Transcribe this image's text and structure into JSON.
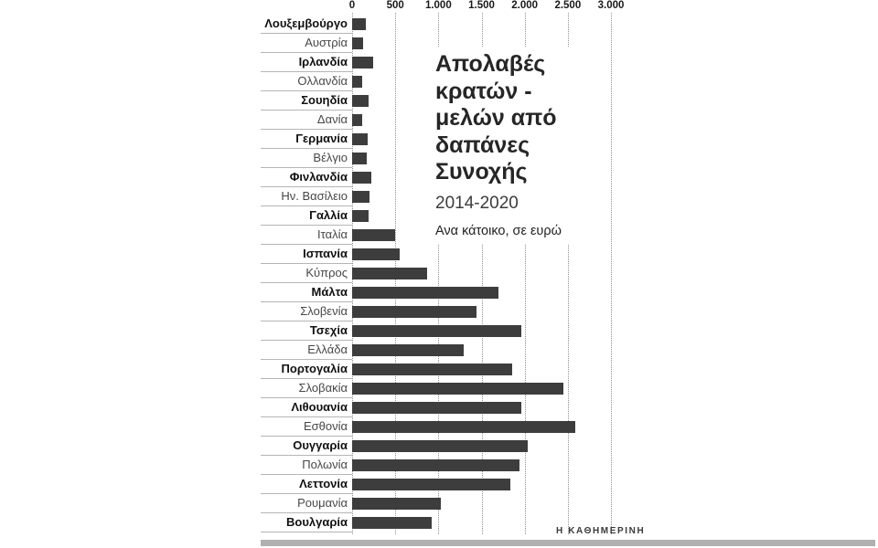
{
  "chart_data": {
    "type": "bar",
    "orientation": "horizontal",
    "title": "Απολαβές κρατών - μελών από δαπάνες Συνοχής",
    "subtitle": "2014-2020",
    "unit_label": "Ανα κάτοικο, σε ευρώ",
    "xlim": [
      0,
      3000
    ],
    "x_ticks": [
      0,
      500,
      1000,
      1500,
      2000,
      2500,
      3000
    ],
    "x_tick_labels": [
      "0",
      "500",
      "1.000",
      "1.500",
      "2.000",
      "2.500",
      "3.000"
    ],
    "grid": "dotted-vertical",
    "legend": "none",
    "label_style_alternating_bold": true,
    "categories": [
      "Λουξεμβούργο",
      "Αυστρία",
      "Ιρλανδία",
      "Ολλανδία",
      "Σουηδία",
      "Δανία",
      "Γερμανία",
      "Βέλγιο",
      "Φινλανδία",
      "Ην. Βασίλειο",
      "Γαλλία",
      "Ιταλία",
      "Ισπανία",
      "Κύπρος",
      "Μάλτα",
      "Σλοβενία",
      "Τσεχία",
      "Ελλάδα",
      "Πορτογαλία",
      "Σλοβακία",
      "Λιθουανία",
      "Εσθονία",
      "Ουγγαρία",
      "Πολωνία",
      "Λεττονία",
      "Ρουμανία",
      "Βουλγαρία"
    ],
    "values": [
      160,
      125,
      245,
      115,
      190,
      115,
      180,
      170,
      220,
      200,
      190,
      500,
      550,
      870,
      1700,
      1440,
      1960,
      1290,
      1850,
      2450,
      1960,
      2590,
      2040,
      1940,
      1830,
      1030,
      920
    ],
    "bar_color": "#3d3d3d",
    "grid_color": "#8f8f8f"
  },
  "branding": {
    "source": "Η ΚΑΘΗΜΕΡΙΝΗ",
    "rule_color": "#b0b0b0"
  }
}
